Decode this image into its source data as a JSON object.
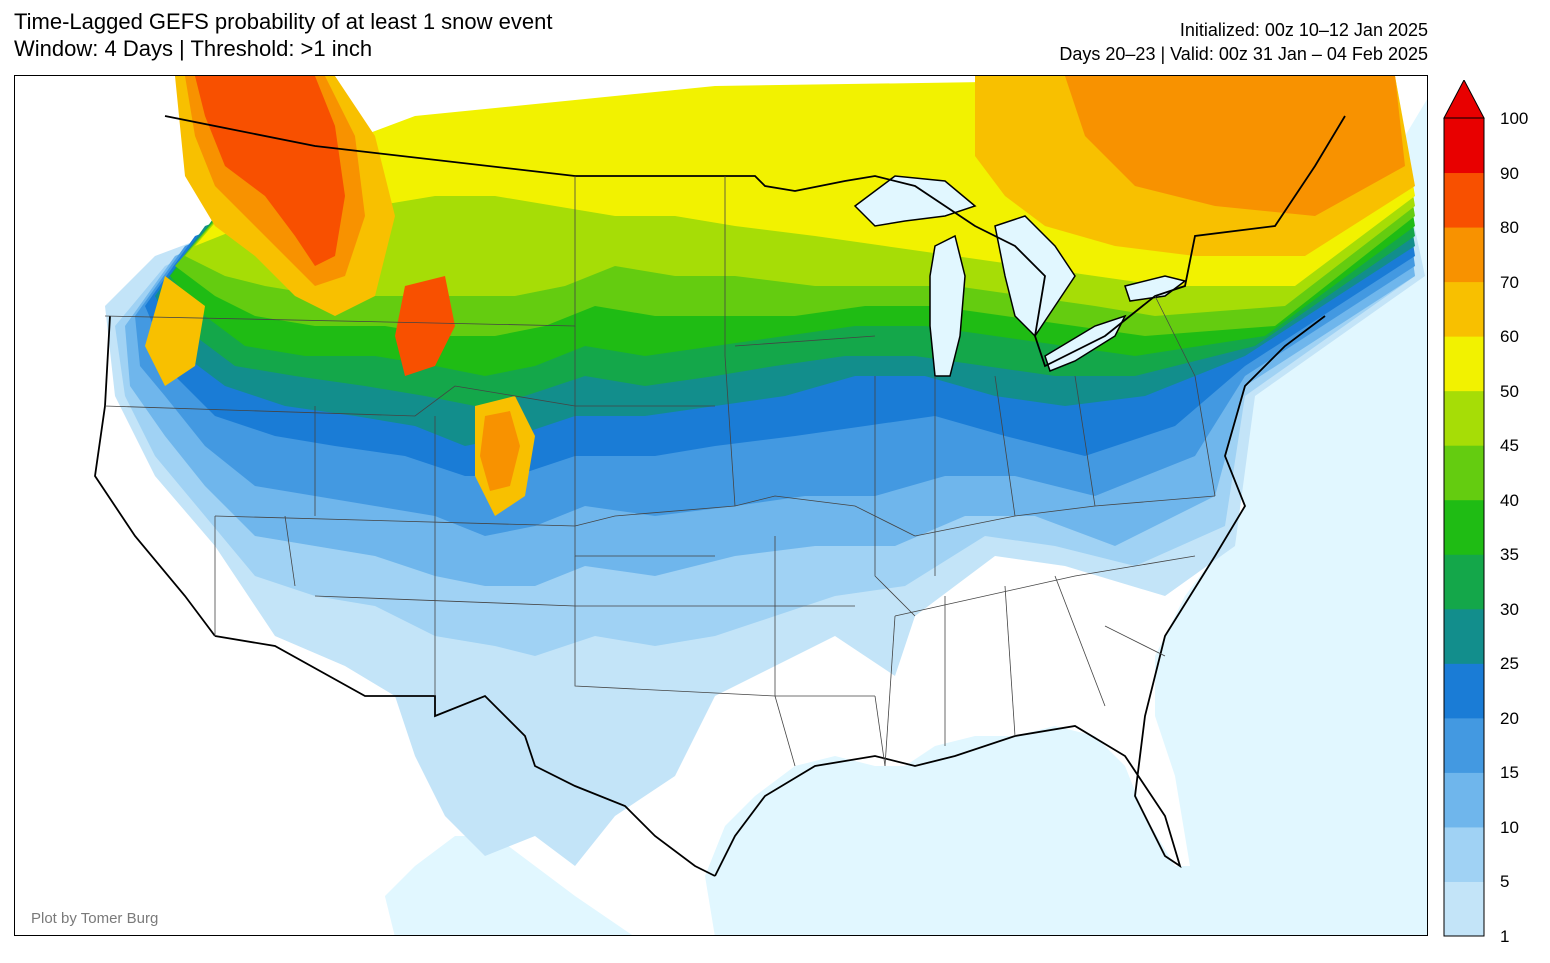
{
  "header": {
    "title_line1": "Time-Lagged GEFS probability of at least 1 snow event",
    "title_line2": "Window: 4 Days | Threshold: >1 inch",
    "init_text": "Initialized: 00z 10–12 Jan 2025",
    "valid_text": "Days 20–23 | Valid: 00z 31 Jan – 04 Feb 2025"
  },
  "credit": "Plot by Tomer Burg",
  "colorbar": {
    "levels": [
      "1",
      "5",
      "10",
      "15",
      "20",
      "25",
      "30",
      "35",
      "40",
      "45",
      "50",
      "60",
      "70",
      "80",
      "90",
      "100"
    ],
    "colors": [
      "#c3e4f8",
      "#a0d2f4",
      "#6fb6ec",
      "#4399e1",
      "#1a7cd6",
      "#128e8c",
      "#14a74a",
      "#1fbc14",
      "#64cc10",
      "#a6dd06",
      "#f2f200",
      "#f8c000",
      "#f89200",
      "#f85000",
      "#e80000"
    ],
    "extend_color": "#e80000",
    "ocean_color": "#e1f7ff"
  },
  "map": {
    "region": "Continental United States",
    "lakes": [
      "Superior",
      "Michigan",
      "Huron",
      "Erie",
      "Ontario"
    ]
  }
}
